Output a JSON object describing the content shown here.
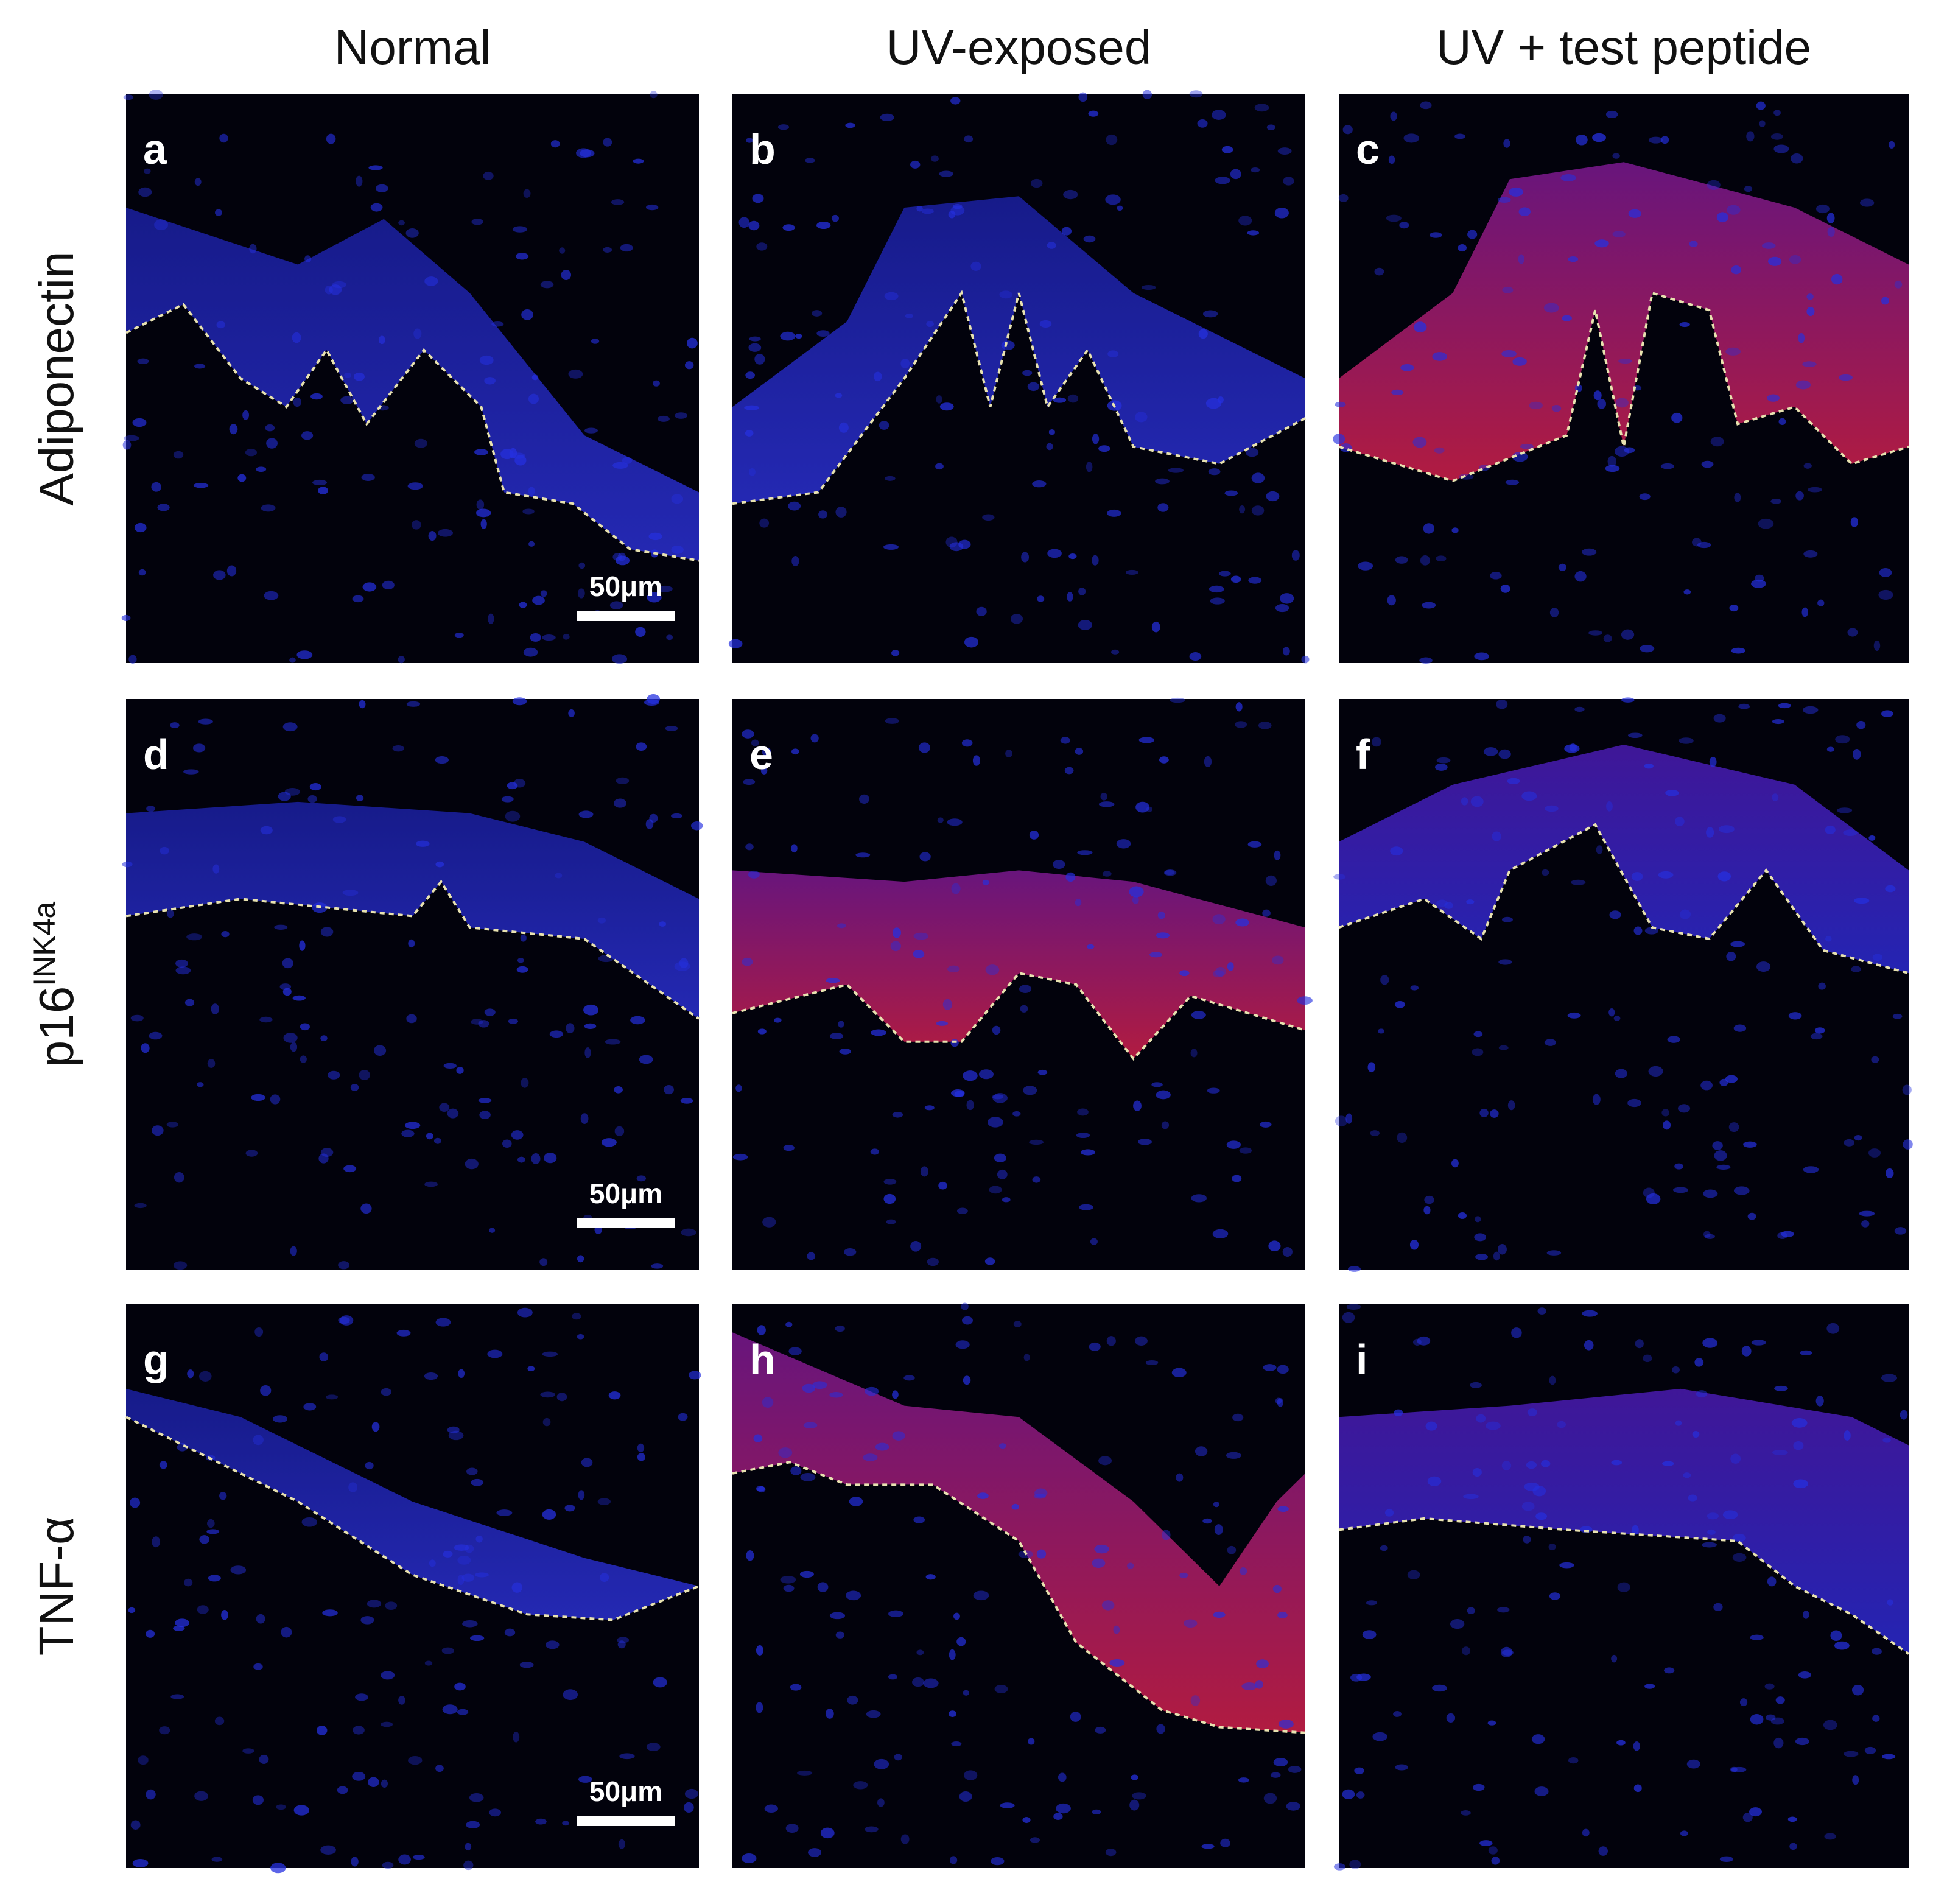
{
  "column_headers": [
    "Normal",
    "UV-exposed",
    "UV + test peptide"
  ],
  "row_labels": [
    {
      "text": "Adiponectin"
    },
    {
      "text": "p16",
      "superscript": "INK4a"
    },
    {
      "text": "TNF-α"
    }
  ],
  "panels": [
    {
      "letter": "a",
      "scale_bar": "50μm"
    },
    {
      "letter": "b"
    },
    {
      "letter": "c"
    },
    {
      "letter": "d",
      "scale_bar": "50μm"
    },
    {
      "letter": "e"
    },
    {
      "letter": "f"
    },
    {
      "letter": "g",
      "scale_bar": "50μm"
    },
    {
      "letter": "h"
    },
    {
      "letter": "i"
    }
  ]
}
